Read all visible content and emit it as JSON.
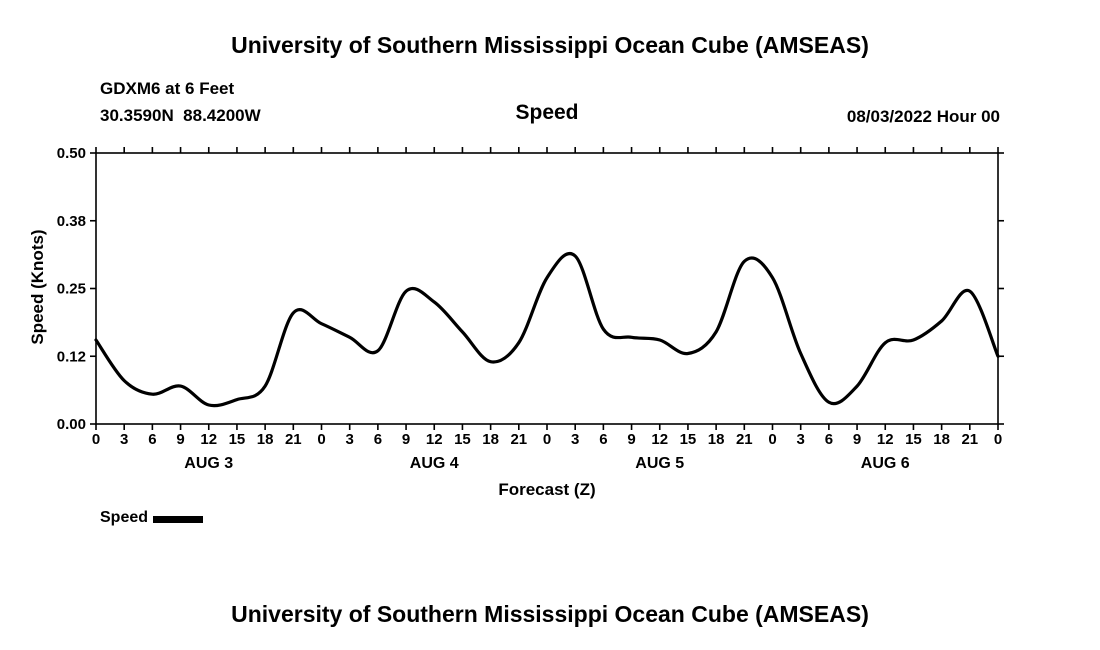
{
  "page": {
    "top_title": "University of Southern Mississippi Ocean Cube (AMSEAS)",
    "bottom_title": "University of Southern Mississippi Ocean Cube (AMSEAS)"
  },
  "header": {
    "station": "GDXM6 at 6 Feet",
    "coordinates": "30.3590N  88.4200W",
    "plot_title": "Speed",
    "run_time": "08/03/2022 Hour 00"
  },
  "legend": {
    "label": "Speed"
  },
  "colors": {
    "line": "#000000",
    "text": "#000000",
    "background": "#ffffff"
  },
  "chart_data": {
    "type": "line",
    "title": "Speed",
    "xlabel": "Forecast (Z)",
    "ylabel": "Speed (Knots)",
    "ylim": [
      0,
      0.5
    ],
    "xlim": [
      0,
      96
    ],
    "grid": false,
    "legend_position": "bottom-left",
    "ytick_values": [
      0,
      0.125,
      0.25,
      0.375,
      0.5
    ],
    "ytick_labels": [
      "0.00",
      "0.12",
      "0.25",
      "0.38",
      "0.50"
    ],
    "xtick_interval_hours": 3,
    "xtick_labels": [
      "0",
      "3",
      "6",
      "9",
      "12",
      "15",
      "18",
      "21",
      "0",
      "3",
      "6",
      "9",
      "12",
      "15",
      "18",
      "21",
      "0",
      "3",
      "6",
      "9",
      "12",
      "15",
      "18",
      "21",
      "0",
      "3",
      "6",
      "9",
      "12",
      "15",
      "18",
      "21",
      "0"
    ],
    "day_labels": [
      {
        "label": "AUG 3",
        "center_hour": 12
      },
      {
        "label": "AUG 4",
        "center_hour": 36
      },
      {
        "label": "AUG 5",
        "center_hour": 60
      },
      {
        "label": "AUG 6",
        "center_hour": 84
      }
    ],
    "line_color": "#000000",
    "series": [
      {
        "name": "Speed",
        "x": [
          0,
          3,
          6,
          9,
          12,
          15,
          18,
          21,
          24,
          27,
          30,
          33,
          36,
          39,
          42,
          45,
          48,
          51,
          54,
          57,
          60,
          63,
          66,
          69,
          72,
          75,
          78,
          81,
          84,
          87,
          90,
          93,
          96
        ],
        "values": [
          0.155,
          0.08,
          0.055,
          0.07,
          0.035,
          0.045,
          0.07,
          0.205,
          0.185,
          0.16,
          0.135,
          0.245,
          0.225,
          0.17,
          0.115,
          0.15,
          0.27,
          0.31,
          0.175,
          0.16,
          0.155,
          0.13,
          0.17,
          0.3,
          0.27,
          0.13,
          0.04,
          0.07,
          0.15,
          0.155,
          0.19,
          0.245,
          0.125
        ]
      }
    ]
  }
}
